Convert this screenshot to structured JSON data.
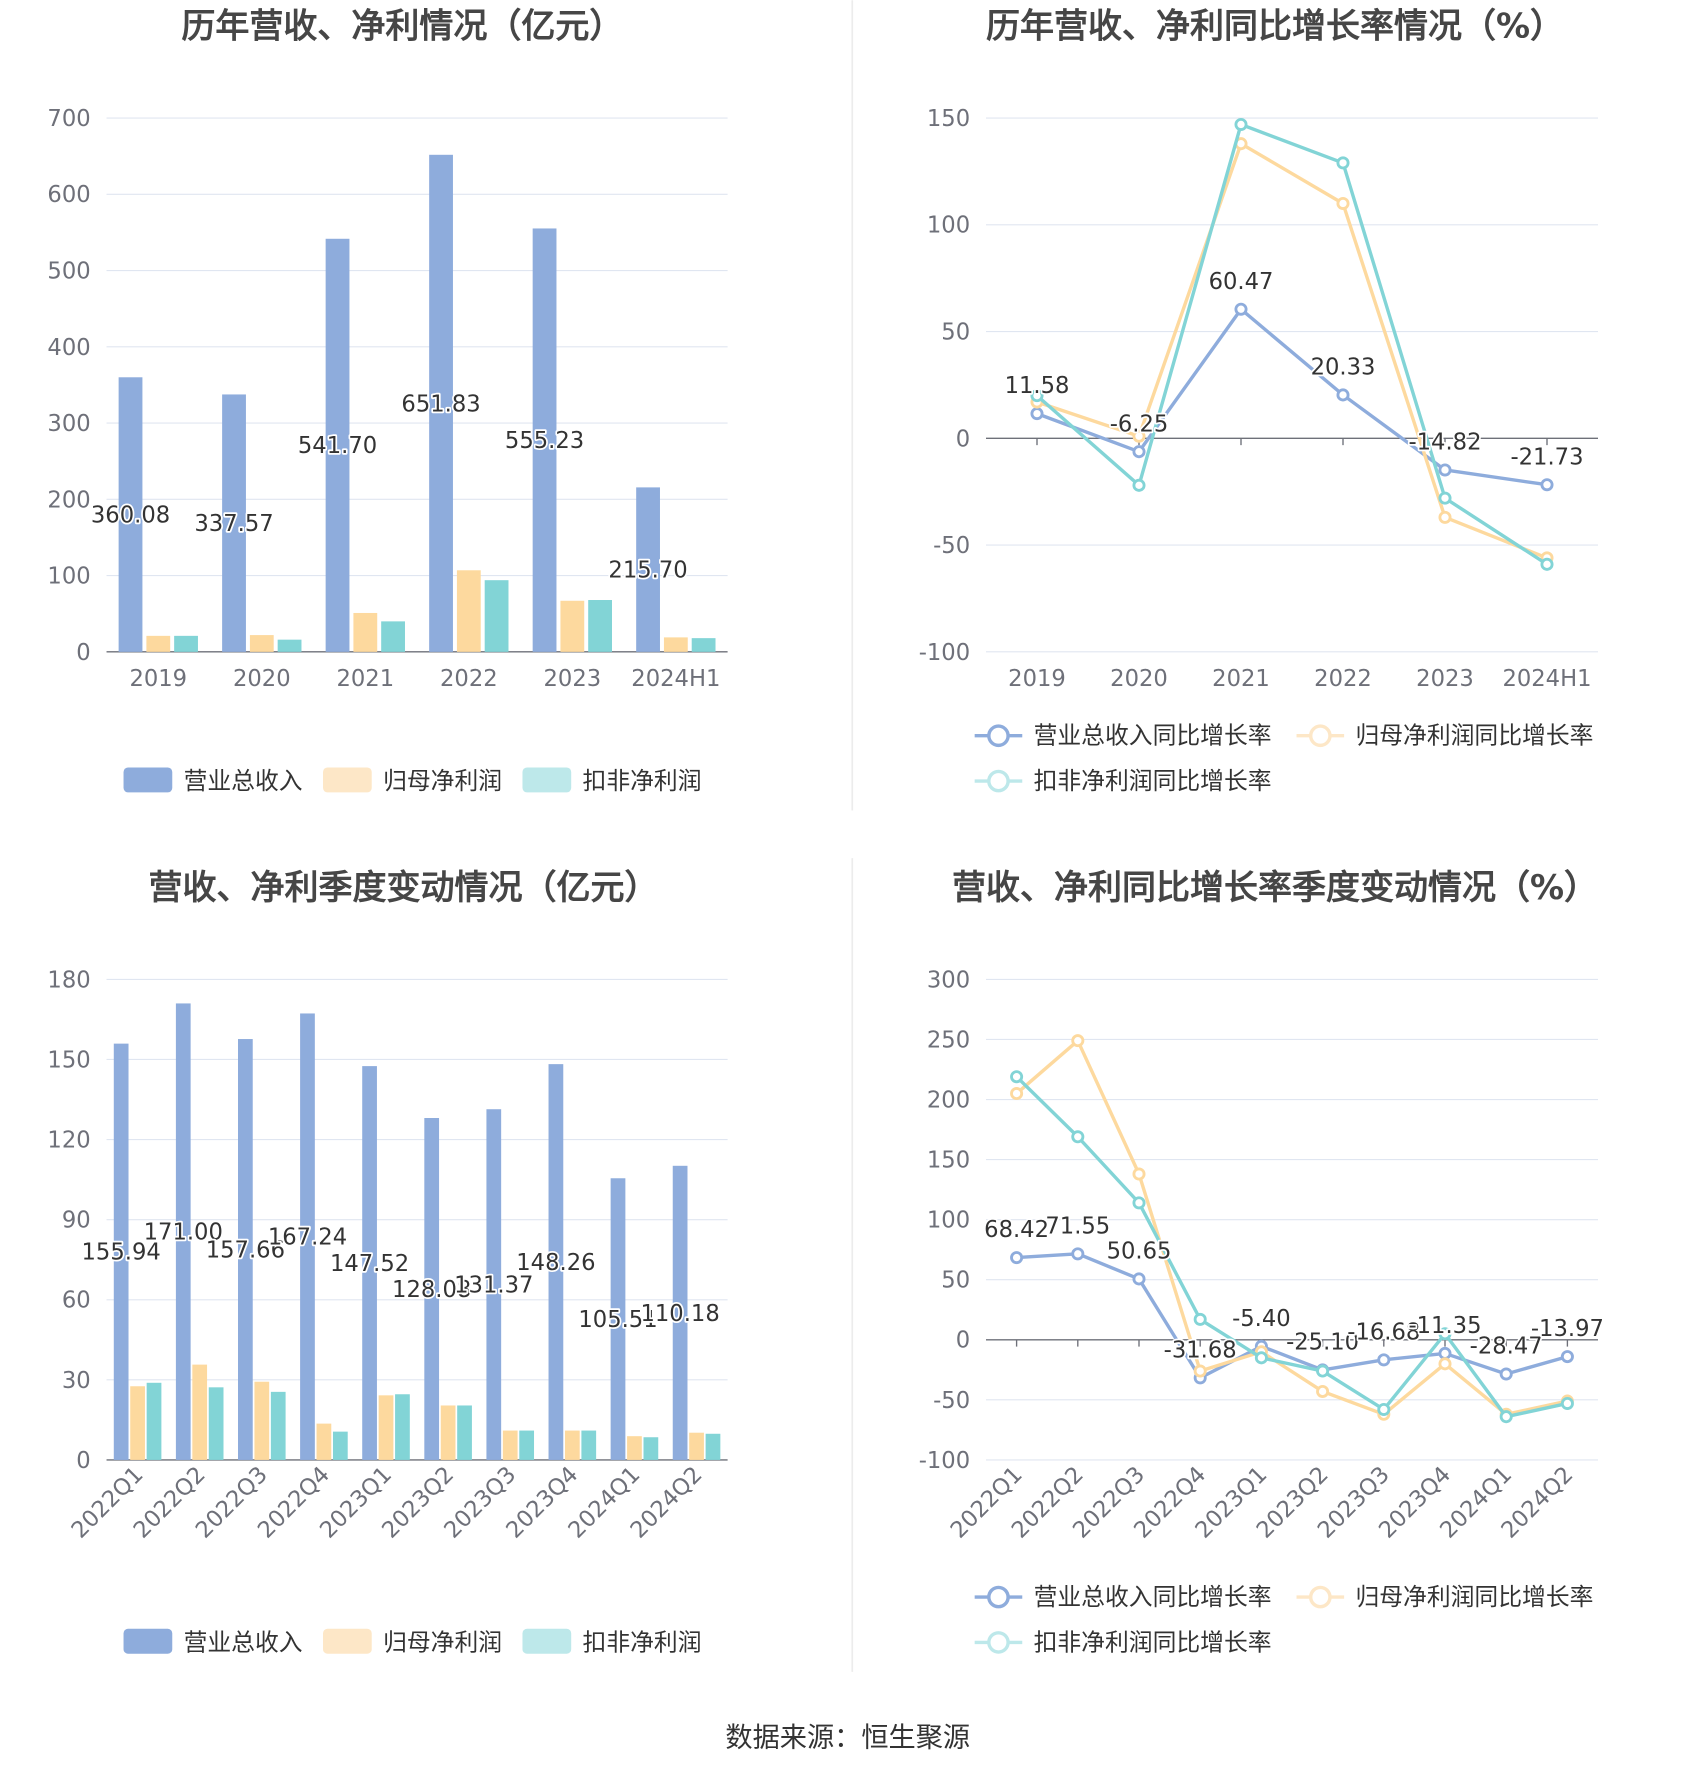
{
  "colors": {
    "series": [
      "#8eacdc",
      "#fdd99e",
      "#82d4d6"
    ],
    "legend": [
      "#8eacdc",
      "#fde7c7",
      "#bde8ea"
    ],
    "axis": "#6e7079",
    "grid": "#e0e6f1"
  },
  "chart_data": [
    {
      "type": "bar",
      "title": "历年营收、净利情况（亿元）",
      "categories": [
        "2019",
        "2020",
        "2021",
        "2022",
        "2023",
        "2024H1"
      ],
      "series": [
        {
          "name": "营业总收入",
          "values": [
            360.08,
            337.57,
            541.7,
            651.83,
            555.23,
            215.7
          ],
          "show_labels": true
        },
        {
          "name": "归母净利润",
          "values": [
            21,
            22,
            51,
            107,
            67,
            19
          ],
          "show_labels": false
        },
        {
          "name": "扣非净利润",
          "values": [
            21,
            16,
            40,
            94,
            68,
            18
          ],
          "show_labels": false
        }
      ],
      "xlabel": "",
      "ylabel": "",
      "ylim": [
        0,
        700
      ],
      "yticks": [
        0,
        100,
        200,
        300,
        400,
        500,
        600,
        700
      ],
      "grid": true,
      "legend": "bottom"
    },
    {
      "type": "line",
      "title": "历年营收、净利同比增长率情况（%）",
      "categories": [
        "2019",
        "2020",
        "2021",
        "2022",
        "2023",
        "2024H1"
      ],
      "series": [
        {
          "name": "营业总收入同比增长率",
          "values": [
            11.58,
            -6.25,
            60.47,
            20.33,
            -14.82,
            -21.73
          ],
          "show_labels": true
        },
        {
          "name": "归母净利润同比增长率",
          "values": [
            17,
            1,
            138,
            110,
            -37,
            -56
          ],
          "show_labels": false
        },
        {
          "name": "扣非净利润同比增长率",
          "values": [
            20,
            -22,
            147,
            129,
            -28,
            -59
          ],
          "show_labels": false
        }
      ],
      "xlabel": "",
      "ylabel": "",
      "ylim": [
        -100,
        150
      ],
      "yticks": [
        -100,
        -50,
        0,
        50,
        100,
        150
      ],
      "grid": true,
      "legend": "bottom"
    },
    {
      "type": "bar",
      "title": "营收、净利季度变动情况（亿元）",
      "categories": [
        "2022Q1",
        "2022Q2",
        "2022Q3",
        "2022Q4",
        "2023Q1",
        "2023Q2",
        "2023Q3",
        "2023Q4",
        "2024Q1",
        "2024Q2"
      ],
      "series": [
        {
          "name": "营业总收入",
          "values": [
            155.94,
            171.0,
            157.66,
            167.24,
            147.52,
            128.08,
            131.37,
            148.26,
            105.51,
            110.18
          ],
          "show_labels": true
        },
        {
          "name": "归母净利润",
          "values": [
            27.6,
            35.7,
            29.3,
            13.6,
            24.2,
            20.4,
            11.0,
            11.0,
            8.9,
            10.2
          ],
          "show_labels": false
        },
        {
          "name": "扣非净利润",
          "values": [
            28.9,
            27.2,
            25.5,
            10.6,
            24.6,
            20.4,
            11.0,
            11.0,
            8.5,
            9.8
          ],
          "show_labels": false
        }
      ],
      "xlabel": "",
      "ylabel": "",
      "ylim": [
        0,
        180
      ],
      "yticks": [
        0,
        30,
        60,
        90,
        120,
        150,
        180
      ],
      "grid": true,
      "legend": "bottom"
    },
    {
      "type": "line",
      "title": "营收、净利同比增长率季度变动情况（%）",
      "categories": [
        "2022Q1",
        "2022Q2",
        "2022Q3",
        "2022Q4",
        "2023Q1",
        "2023Q2",
        "2023Q3",
        "2023Q4",
        "2024Q1",
        "2024Q2"
      ],
      "series": [
        {
          "name": "营业总收入同比增长率",
          "values": [
            68.42,
            71.55,
            50.65,
            -31.68,
            -5.4,
            -25.1,
            -16.68,
            -11.35,
            -28.47,
            -13.97
          ],
          "show_labels": true
        },
        {
          "name": "归母净利润同比增长率",
          "values": [
            205,
            249,
            138,
            -26,
            -10,
            -43,
            -62,
            -20,
            -62,
            -51
          ],
          "show_labels": false
        },
        {
          "name": "扣非净利润同比增长率",
          "values": [
            219,
            169,
            114,
            17,
            -15,
            -26,
            -58,
            5,
            -64,
            -53
          ],
          "show_labels": false
        }
      ],
      "xlabel": "",
      "ylabel": "",
      "ylim": [
        -100,
        300
      ],
      "yticks": [
        -100,
        -50,
        0,
        50,
        100,
        150,
        200,
        250,
        300
      ],
      "grid": true,
      "legend": "bottom"
    }
  ],
  "footer": {
    "source": "数据来源：恒生聚源"
  }
}
